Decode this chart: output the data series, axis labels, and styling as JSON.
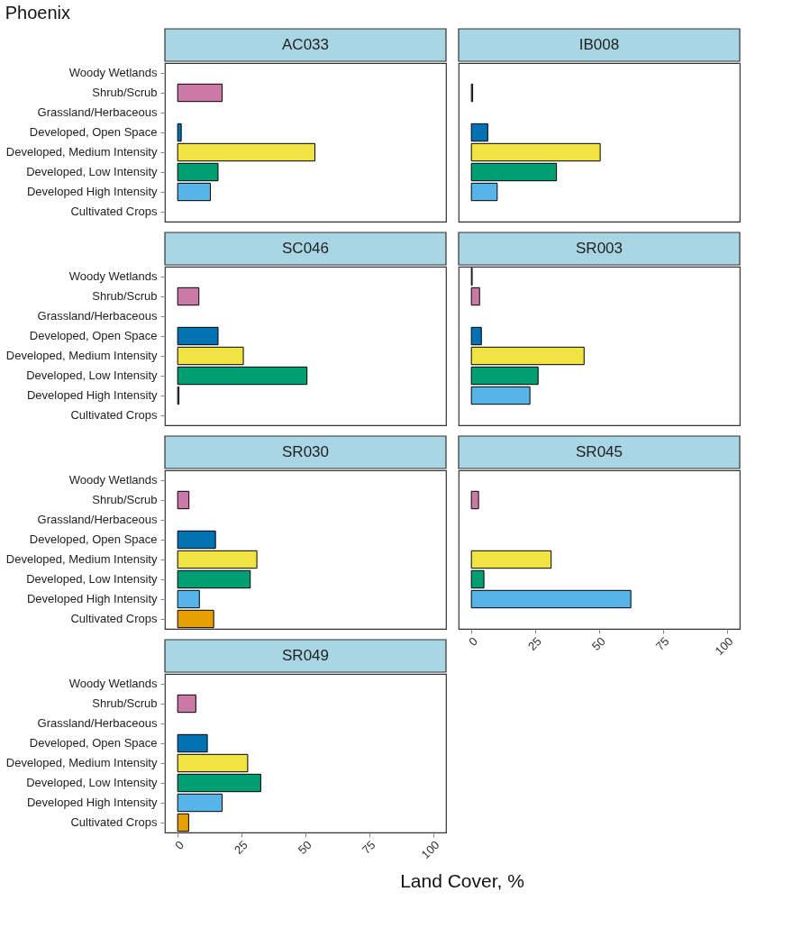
{
  "chart_data": [
    {
      "type": "bar",
      "orientation": "horizontal",
      "title": "AC033",
      "annotations": [
        "Phoenix"
      ],
      "categories": [
        "Woody Wetlands",
        "Shrub/Scrub",
        "Grassland/Herbaceous",
        "Developed, Open Space",
        "Developed, Medium Intensity",
        "Developed, Low Intensity",
        "Developed High Intensity",
        "Cultivated Crops"
      ],
      "colors": [
        "#999999",
        "#cc79a7",
        "#d55e00",
        "#0072b2",
        "#f0e442",
        "#009e73",
        "#56b4e9",
        "#e69f00"
      ],
      "values": [
        null,
        17.4,
        null,
        1.4,
        53.7,
        15.8,
        12.8,
        null
      ],
      "xlim": [
        -5,
        105
      ],
      "xticks": [
        0,
        25,
        50,
        75,
        100
      ],
      "tick_labels": "y"
    },
    {
      "type": "bar",
      "orientation": "horizontal",
      "title": "IB008",
      "categories": [
        "Woody Wetlands",
        "Shrub/Scrub",
        "Grassland/Herbaceous",
        "Developed, Open Space",
        "Developed, Medium Intensity",
        "Developed, Low Intensity",
        "Developed High Intensity",
        "Cultivated Crops"
      ],
      "colors": [
        "#999999",
        "#cc79a7",
        "#d55e00",
        "#0072b2",
        "#f0e442",
        "#009e73",
        "#56b4e9",
        "#e69f00"
      ],
      "values": [
        null,
        0.5,
        null,
        6.4,
        50.4,
        33.3,
        10.1,
        null
      ],
      "xlim": [
        -5,
        105
      ],
      "xticks": [
        0,
        25,
        50,
        75,
        100
      ],
      "tick_labels": false
    },
    {
      "type": "bar",
      "orientation": "horizontal",
      "title": "SC046",
      "categories": [
        "Woody Wetlands",
        "Shrub/Scrub",
        "Grassland/Herbaceous",
        "Developed, Open Space",
        "Developed, Medium Intensity",
        "Developed, Low Intensity",
        "Developed High Intensity",
        "Cultivated Crops"
      ],
      "colors": [
        "#999999",
        "#cc79a7",
        "#d55e00",
        "#0072b2",
        "#f0e442",
        "#009e73",
        "#56b4e9",
        "#e69f00"
      ],
      "values": [
        null,
        8.3,
        null,
        15.8,
        25.7,
        50.6,
        0.5,
        null
      ],
      "xlim": [
        -5,
        105
      ],
      "xticks": [
        0,
        25,
        50,
        75,
        100
      ],
      "tick_labels": "y"
    },
    {
      "type": "bar",
      "orientation": "horizontal",
      "title": "SR003",
      "categories": [
        "Woody Wetlands",
        "Shrub/Scrub",
        "Grassland/Herbaceous",
        "Developed, Open Space",
        "Developed, Medium Intensity",
        "Developed, Low Intensity",
        "Developed High Intensity",
        "Cultivated Crops"
      ],
      "colors": [
        "#999999",
        "#cc79a7",
        "#d55e00",
        "#0072b2",
        "#f0e442",
        "#009e73",
        "#56b4e9",
        "#e69f00"
      ],
      "values": [
        0.3,
        3.2,
        null,
        3.9,
        44.1,
        26.1,
        22.9,
        null
      ],
      "xlim": [
        -5,
        105
      ],
      "xticks": [
        0,
        25,
        50,
        75,
        100
      ],
      "tick_labels": false
    },
    {
      "type": "bar",
      "orientation": "horizontal",
      "title": "SR030",
      "categories": [
        "Woody Wetlands",
        "Shrub/Scrub",
        "Grassland/Herbaceous",
        "Developed, Open Space",
        "Developed, Medium Intensity",
        "Developed, Low Intensity",
        "Developed High Intensity",
        "Cultivated Crops"
      ],
      "colors": [
        "#999999",
        "#cc79a7",
        "#d55e00",
        "#0072b2",
        "#f0e442",
        "#009e73",
        "#56b4e9",
        "#e69f00"
      ],
      "values": [
        null,
        4.4,
        null,
        14.8,
        31.0,
        28.4,
        8.5,
        14.1
      ],
      "xlim": [
        -5,
        105
      ],
      "xticks": [
        0,
        25,
        50,
        75,
        100
      ],
      "tick_labels": "y"
    },
    {
      "type": "bar",
      "orientation": "horizontal",
      "title": "SR045",
      "categories": [
        "Woody Wetlands",
        "Shrub/Scrub",
        "Grassland/Herbaceous",
        "Developed, Open Space",
        "Developed, Medium Intensity",
        "Developed, Low Intensity",
        "Developed High Intensity",
        "Cultivated Crops"
      ],
      "colors": [
        "#999999",
        "#cc79a7",
        "#d55e00",
        "#0072b2",
        "#f0e442",
        "#009e73",
        "#56b4e9",
        "#e69f00"
      ],
      "values": [
        null,
        2.8,
        null,
        null,
        31.2,
        4.9,
        62.4,
        null
      ],
      "xlim": [
        -5,
        105
      ],
      "xticks": [
        0,
        25,
        50,
        75,
        100
      ],
      "tick_labels": "x"
    },
    {
      "type": "bar",
      "orientation": "horizontal",
      "title": "SR049",
      "xlabel": "Land Cover, %",
      "categories": [
        "Woody Wetlands",
        "Shrub/Scrub",
        "Grassland/Herbaceous",
        "Developed, Open Space",
        "Developed, Medium Intensity",
        "Developed, Low Intensity",
        "Developed High Intensity",
        "Cultivated Crops"
      ],
      "colors": [
        "#999999",
        "#cc79a7",
        "#d55e00",
        "#0072b2",
        "#f0e442",
        "#009e73",
        "#56b4e9",
        "#e69f00"
      ],
      "values": [
        null,
        7.1,
        null,
        11.6,
        27.4,
        32.5,
        17.4,
        4.3
      ],
      "xlim": [
        -5,
        105
      ],
      "xticks": [
        0,
        25,
        50,
        75,
        100
      ]
    }
  ]
}
